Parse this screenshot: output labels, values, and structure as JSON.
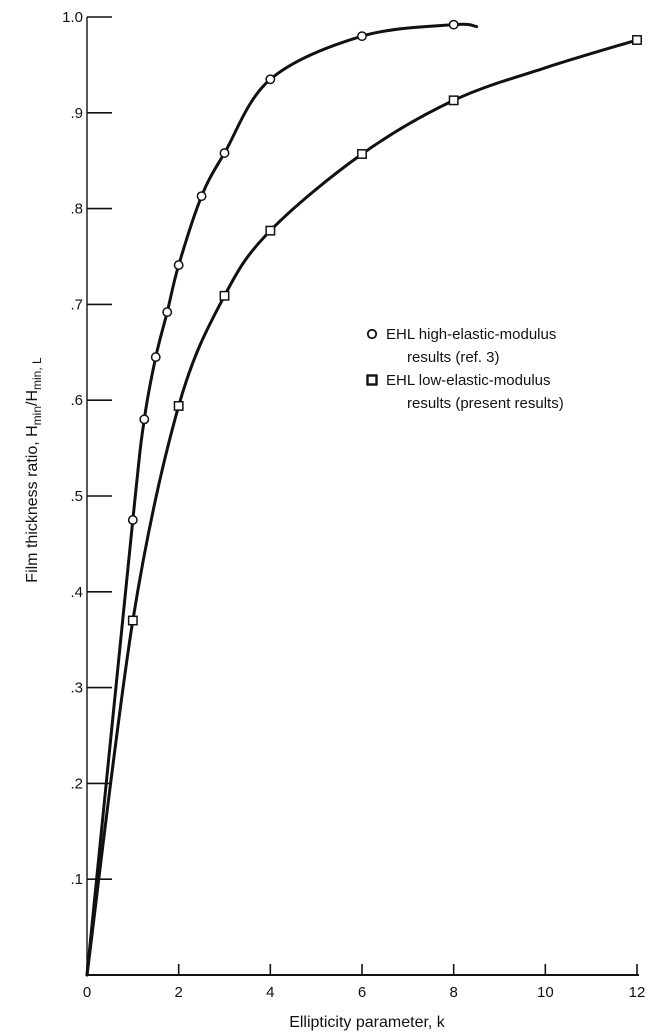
{
  "chart_data": {
    "type": "line",
    "xlabel": "Ellipticity parameter, k",
    "ylabel": "Film thickness ratio, H",
    "ylabel_sub1": "min",
    "ylabel_mid": "/H",
    "ylabel_sub2": "min, L",
    "xlim": [
      0,
      12
    ],
    "ylim": [
      0,
      1.0
    ],
    "x_ticks": [
      0,
      2,
      4,
      6,
      8,
      10,
      12
    ],
    "x_tick_labels": [
      "0",
      "2",
      "4",
      "6",
      "8",
      "10",
      "12"
    ],
    "y_ticks": [
      0.1,
      0.2,
      0.3,
      0.4,
      0.5,
      0.6,
      0.7,
      0.8,
      0.9,
      1.0
    ],
    "y_tick_labels": [
      ".1",
      ".2",
      ".3",
      ".4",
      ".5",
      ".6",
      ".7",
      ".8",
      ".9",
      "1.0"
    ],
    "grid": false,
    "legend_position": "right-middle",
    "series": [
      {
        "name": "EHL high-elastic-modulus results (ref. 3)",
        "legend_line1": "EHL high-elastic-modulus",
        "legend_line2": "results (ref. 3)",
        "marker": "circle",
        "points": [
          [
            1,
            0.475
          ],
          [
            1.25,
            0.58
          ],
          [
            1.5,
            0.645
          ],
          [
            1.75,
            0.692
          ],
          [
            2,
            0.741
          ],
          [
            2.5,
            0.813
          ],
          [
            3,
            0.858
          ],
          [
            4,
            0.935
          ],
          [
            6,
            0.98
          ],
          [
            8,
            0.992
          ]
        ],
        "curve": [
          [
            0,
            0
          ],
          [
            1,
            0.475
          ],
          [
            1.25,
            0.58
          ],
          [
            1.5,
            0.645
          ],
          [
            1.75,
            0.692
          ],
          [
            2,
            0.741
          ],
          [
            2.5,
            0.813
          ],
          [
            3,
            0.858
          ],
          [
            4,
            0.935
          ],
          [
            6,
            0.98
          ],
          [
            8,
            0.992
          ],
          [
            8.5,
            0.99
          ]
        ]
      },
      {
        "name": "EHL low-elastic-modulus results (present results)",
        "legend_line1": "EHL low-elastic-modulus",
        "legend_line2": "results (present results)",
        "marker": "square",
        "points": [
          [
            1,
            0.37
          ],
          [
            2,
            0.594
          ],
          [
            3,
            0.709
          ],
          [
            4,
            0.777
          ],
          [
            6,
            0.857
          ],
          [
            8,
            0.913
          ],
          [
            12,
            0.976
          ]
        ],
        "curve": [
          [
            0,
            0
          ],
          [
            1,
            0.37
          ],
          [
            2,
            0.594
          ],
          [
            3,
            0.709
          ],
          [
            4,
            0.777
          ],
          [
            6,
            0.857
          ],
          [
            8,
            0.913
          ],
          [
            10,
            0.947
          ],
          [
            12,
            0.976
          ]
        ]
      }
    ]
  }
}
